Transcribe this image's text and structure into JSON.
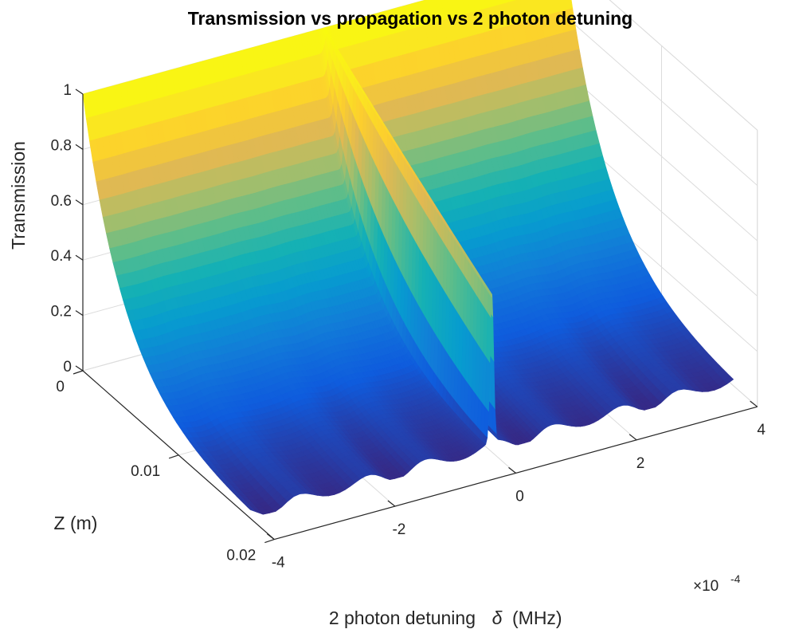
{
  "chart_data": {
    "type": "surface",
    "title": "Transmission vs propagation vs 2 photon detuning",
    "xlabel": "2 photon detuning",
    "xlabel_symbol": "δ",
    "xlabel_unit": "(MHz)",
    "x_exponent_label": "×10",
    "x_exponent_power": "-4",
    "ylabel": "Z (m)",
    "zlabel": "Transmission",
    "xlim": [
      -4,
      4
    ],
    "x_ticks": [
      "-4",
      "-2",
      "0",
      "2",
      "4"
    ],
    "x_tick_values": [
      -4,
      -2,
      0,
      2,
      4
    ],
    "ylim": [
      0,
      0.02
    ],
    "y_ticks": [
      "0",
      "0.01",
      "0.02"
    ],
    "y_tick_values": [
      0,
      0.01,
      0.02
    ],
    "zlim": [
      0,
      1
    ],
    "z_ticks": [
      "0",
      "0.2",
      "0.4",
      "0.6",
      "0.8",
      "1"
    ],
    "z_tick_values": [
      0,
      0.2,
      0.4,
      0.6,
      0.8,
      1
    ],
    "x_data_range": [
      -4,
      4
    ],
    "y_data_range": [
      0,
      0.0175
    ],
    "transmission_at_z0": 1.0,
    "transmission_at_zmax_far_detuning": 0.02,
    "eit_peak_detuning": 0,
    "eit_peak_transmission_at_zmax": 0.52,
    "colormap": "parula",
    "grid": true
  }
}
